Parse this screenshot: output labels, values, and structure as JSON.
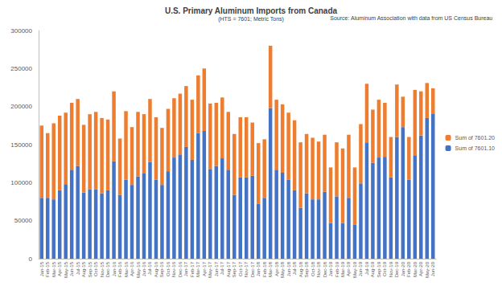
{
  "chart_data": {
    "type": "bar",
    "title": "U.S. Primary Aluminum Imports from Canada",
    "subtitle": "(HTS = 7601; Metric Tons)",
    "source": "Source: Aluminum Association with data from US Census Bureau",
    "stacked": true,
    "grid": false,
    "legend": "right",
    "categories": [
      "Jan-15",
      "Feb-15",
      "Mar-15",
      "Apr-15",
      "May-15",
      "Jun-15",
      "Jul-15",
      "Aug-15",
      "Sep-15",
      "Oct-15",
      "Nov-15",
      "Dec-15",
      "Jan-16",
      "Feb-16",
      "Mar-16",
      "Apr-16",
      "May-16",
      "Jun-16",
      "Jul-16",
      "Aug-16",
      "Sep-16",
      "Oct-16",
      "Nov-16",
      "Dec-16",
      "Jan-17",
      "Feb-17",
      "Mar-17",
      "Apr-17",
      "May-17",
      "Jun-17",
      "Jul-17",
      "Aug-17",
      "Sep-17",
      "Oct-17",
      "Nov-17",
      "Dec-17",
      "Jan-18",
      "Feb-18",
      "Mar-18",
      "Apr-18",
      "May-18",
      "Jun-18",
      "Jul-18",
      "Aug-18",
      "Sep-18",
      "Oct-18",
      "Nov-18",
      "Dec-18",
      "Jan-19",
      "Feb-19",
      "Mar-19",
      "Apr-19",
      "May-19",
      "Jun-19",
      "Jul-19",
      "Aug-19",
      "Sep-19",
      "Oct-19",
      "Nov-19",
      "Dec-19",
      "Jan-20",
      "Feb-20",
      "Mar-20",
      "Apr-20",
      "May-20",
      "Jun-20"
    ],
    "series": [
      {
        "name": "Sum of 7601.10",
        "color": "#4472c4",
        "values": [
          80000,
          80000,
          78000,
          90000,
          98000,
          117000,
          122000,
          87000,
          91000,
          91000,
          86000,
          90000,
          128000,
          84000,
          104000,
          97000,
          108000,
          112000,
          127000,
          104000,
          97000,
          115000,
          133000,
          137000,
          147000,
          130000,
          165000,
          168000,
          118000,
          122000,
          132000,
          117000,
          84000,
          107000,
          107000,
          109000,
          72000,
          80000,
          198000,
          117000,
          113000,
          104000,
          90000,
          67000,
          86000,
          78000,
          78000,
          88000,
          47000,
          82000,
          47000,
          80000,
          45000,
          99000,
          153000,
          126000,
          133000,
          134000,
          107000,
          160000,
          173000,
          104000,
          136000,
          162000,
          185000,
          191000
        ]
      },
      {
        "name": "Sum of 7601.20",
        "color": "#ed7d31",
        "values": [
          95000,
          85000,
          100000,
          98000,
          94000,
          88000,
          88000,
          89000,
          99000,
          102000,
          99000,
          93000,
          92000,
          74000,
          90000,
          76000,
          85000,
          78000,
          83000,
          82000,
          75000,
          82000,
          78000,
          80000,
          80000,
          79000,
          76000,
          82000,
          86000,
          83000,
          80000,
          76000,
          80000,
          79000,
          79000,
          70000,
          80000,
          77000,
          82000,
          92000,
          90000,
          88000,
          92000,
          86000,
          78000,
          81000,
          76000,
          75000,
          73000,
          71000,
          98000,
          83000,
          75000,
          78000,
          77000,
          70000,
          76000,
          71000,
          53000,
          69000,
          40000,
          56000,
          86000,
          58000,
          46000,
          33000
        ]
      }
    ],
    "ylim": [
      0,
      300000
    ],
    "yticks": [
      0,
      50000,
      100000,
      150000,
      200000,
      250000,
      300000
    ]
  }
}
